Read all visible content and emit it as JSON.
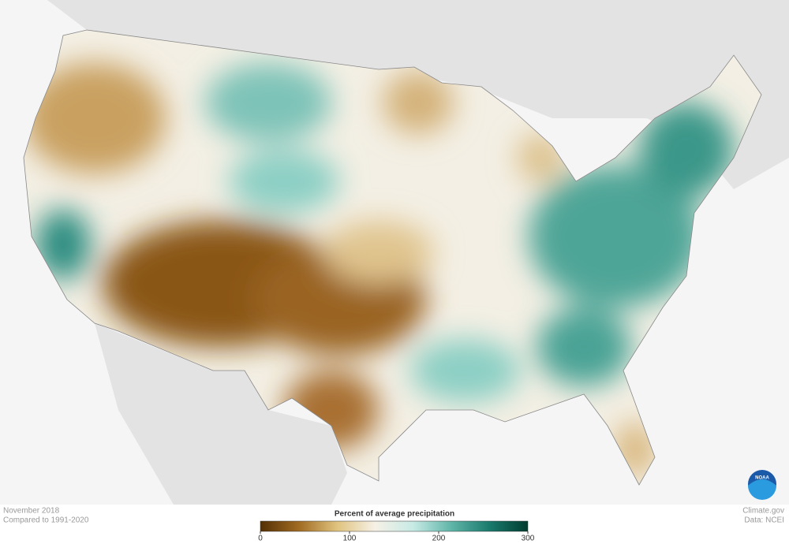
{
  "caption": {
    "title": "November 2018",
    "subtitle": "Compared to 1991-2020"
  },
  "legend": {
    "title": "Percent of average precipitation",
    "range": [
      0,
      300
    ],
    "ticks": [
      0,
      100,
      200,
      300
    ],
    "colors": [
      "#543005",
      "#a06a22",
      "#dfc27d",
      "#f6f1e6",
      "#c7eae5",
      "#5fb5a8",
      "#1a7a6c",
      "#003c30"
    ]
  },
  "credits": {
    "site": "Climate.gov",
    "source": "Data: NCEI",
    "logo": "NOAA"
  }
}
